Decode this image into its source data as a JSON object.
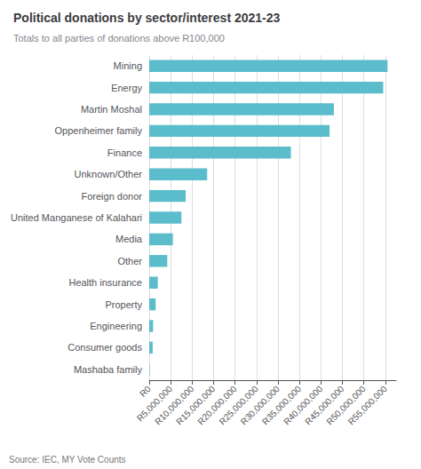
{
  "chart_data": {
    "type": "bar",
    "orientation": "horizontal",
    "title": "Political donations by sector/interest 2021-23",
    "subtitle": "Totals to all parties of donations above R100,000",
    "source": "Source: IEC, MY Vote Counts",
    "categories": [
      "Mining",
      "Energy",
      "Martin Moshal",
      "Oppenheimer family",
      "Finance",
      "Unknown/Other",
      "Foreign donor",
      "United Manganese of Kalahari",
      "Media",
      "Other",
      "Health insurance",
      "Property",
      "Engineering",
      "Consumer goods",
      "Mashaba family"
    ],
    "values": [
      55500000,
      54500000,
      43000000,
      42000000,
      33000000,
      13500000,
      8500000,
      7500000,
      5500000,
      4200000,
      2000000,
      1500000,
      900000,
      800000,
      100000
    ],
    "color": "#5bbccc",
    "xlim": [
      0,
      57500000
    ],
    "xticks": [
      {
        "value": 0,
        "label": "R0"
      },
      {
        "value": 5000000,
        "label": "R5,000,000"
      },
      {
        "value": 10000000,
        "label": "R10,000,000"
      },
      {
        "value": 15000000,
        "label": "R15,000,000"
      },
      {
        "value": 20000000,
        "label": "R20,000,000"
      },
      {
        "value": 25000000,
        "label": "R25,000,000"
      },
      {
        "value": 30000000,
        "label": "R30,000,000"
      },
      {
        "value": 35000000,
        "label": "R35,000,000"
      },
      {
        "value": 40000000,
        "label": "R40,000,000"
      },
      {
        "value": 45000000,
        "label": "R45,000,000"
      },
      {
        "value": 50000000,
        "label": "R50,000,000"
      },
      {
        "value": 55000000,
        "label": "R55,000,000"
      }
    ],
    "grid": true
  }
}
